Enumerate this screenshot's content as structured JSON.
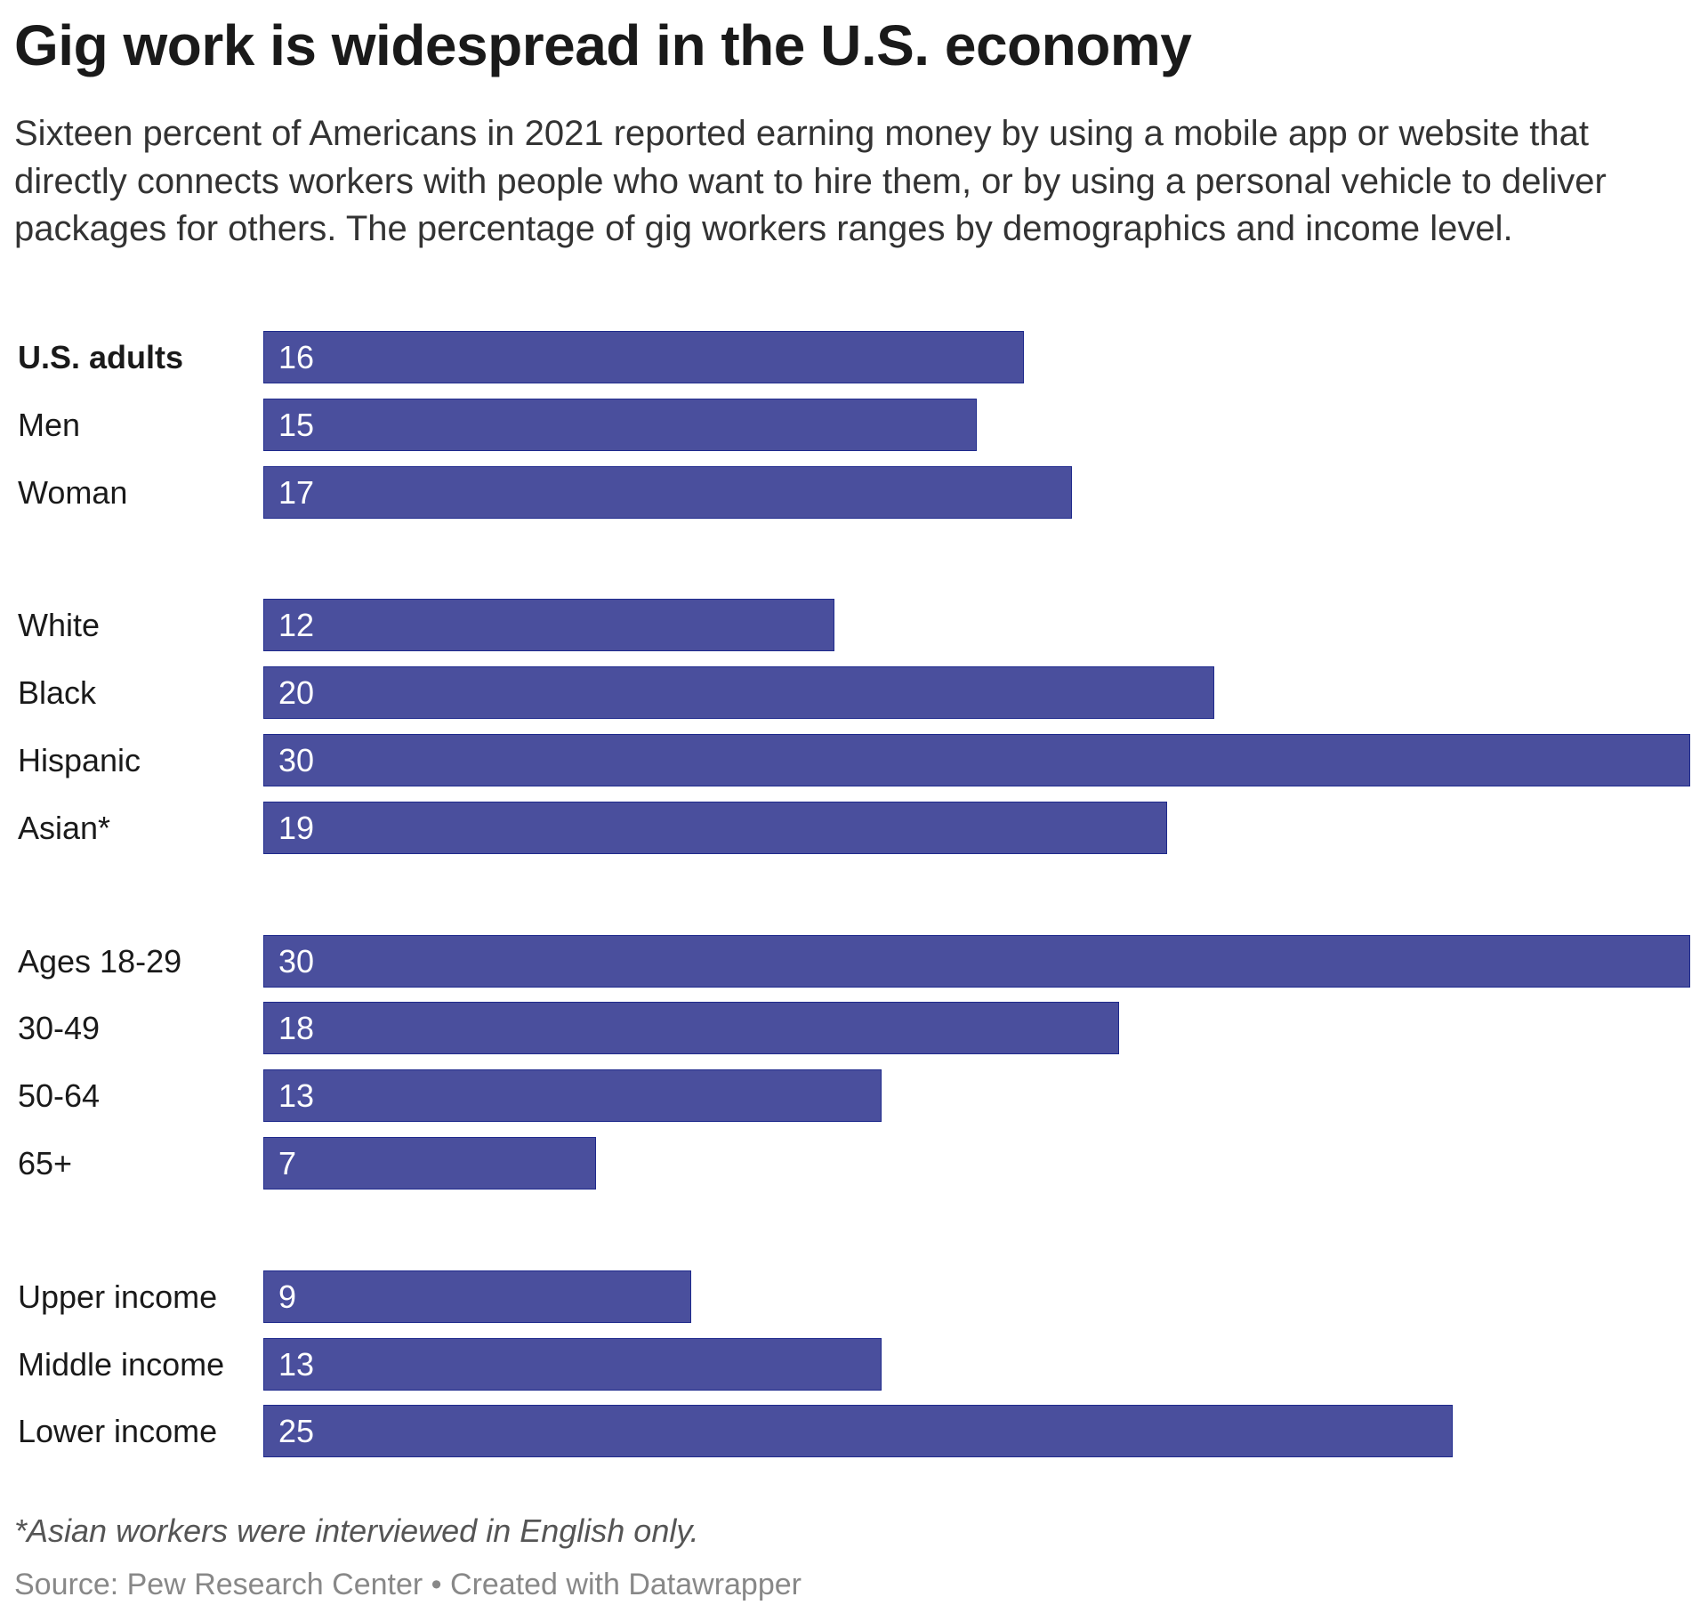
{
  "title": "Gig work is widespread in the U.S. economy",
  "subtitle": "Sixteen percent of Americans in 2021 reported earning money by using a mobile app or website that directly connects workers with people who want to hire them, or by using a personal vehicle to deliver packages for others. The percentage of gig workers ranges by demographics and income level.",
  "note": "*Asian workers were interviewed in English only.",
  "source": "Source: Pew Research Center • Created with Datawrapper",
  "chart_data": {
    "type": "bar",
    "orientation": "horizontal",
    "bar_color": "#4a4f9d",
    "xlim": [
      0,
      30
    ],
    "groups": [
      {
        "categories": [
          "U.S. adults",
          "Men",
          "Woman"
        ],
        "values": [
          16,
          15,
          17
        ]
      },
      {
        "categories": [
          "White",
          "Black",
          "Hispanic",
          "Asian*"
        ],
        "values": [
          12,
          20,
          30,
          19
        ]
      },
      {
        "categories": [
          "Ages 18-29",
          "30-49",
          "50-64",
          "65+"
        ],
        "values": [
          30,
          18,
          13,
          7
        ]
      },
      {
        "categories": [
          "Upper income",
          "Middle income",
          "Lower income"
        ],
        "values": [
          9,
          13,
          25
        ]
      }
    ],
    "bold_categories": [
      "U.S. adults"
    ]
  }
}
